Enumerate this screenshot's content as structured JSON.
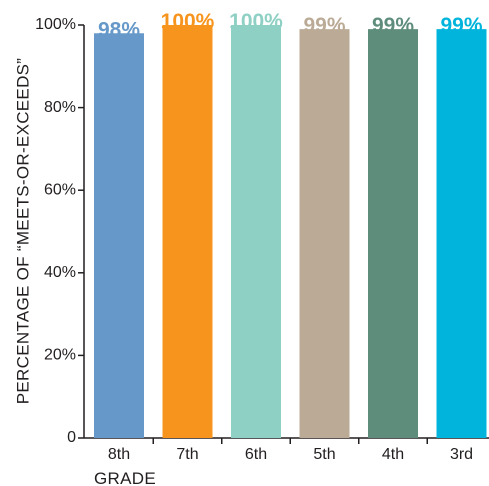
{
  "chart_data": {
    "type": "bar",
    "categories": [
      "8th",
      "7th",
      "6th",
      "5th",
      "4th",
      "3rd"
    ],
    "values": [
      98,
      100,
      100,
      99,
      99,
      99
    ],
    "data_labels": [
      "98%",
      "100%",
      "100%",
      "99%",
      "99%",
      "99%"
    ],
    "colors": [
      "#6699c9",
      "#f7941d",
      "#8fd0c4",
      "#bbab96",
      "#5f8d7c",
      "#00b4dc"
    ],
    "title": "",
    "xlabel": "GRADE",
    "ylabel": "PERCENTAGE OF “MEETS-OR-EXCEEDS”",
    "ylim": [
      0,
      100
    ],
    "yticks": [
      0,
      20,
      40,
      60,
      80,
      100
    ],
    "ytick_labels": [
      "0",
      "20%",
      "40%",
      "60%",
      "80%",
      "100%"
    ],
    "grid": false,
    "legend": "none"
  }
}
